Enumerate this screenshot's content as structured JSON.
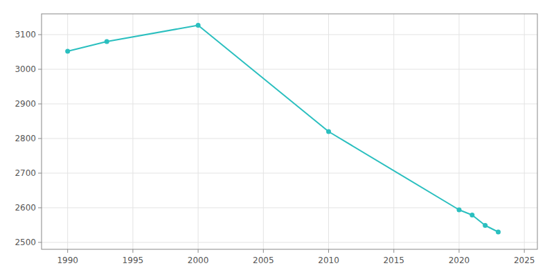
{
  "chart_data": {
    "type": "line",
    "x": [
      1990,
      1993,
      2000,
      2010,
      2020,
      2021,
      2022,
      2023
    ],
    "values": [
      3052,
      3080,
      3127,
      2820,
      2594,
      2579,
      2549,
      2530
    ],
    "color": "#2abfbf",
    "marker": "circle",
    "xlim": [
      1988,
      2026
    ],
    "ylim": [
      2480,
      3160
    ],
    "xticks": [
      1990,
      1995,
      2000,
      2005,
      2010,
      2015,
      2020,
      2025
    ],
    "yticks": [
      2500,
      2600,
      2700,
      2800,
      2900,
      3000,
      3100
    ],
    "grid": true
  }
}
